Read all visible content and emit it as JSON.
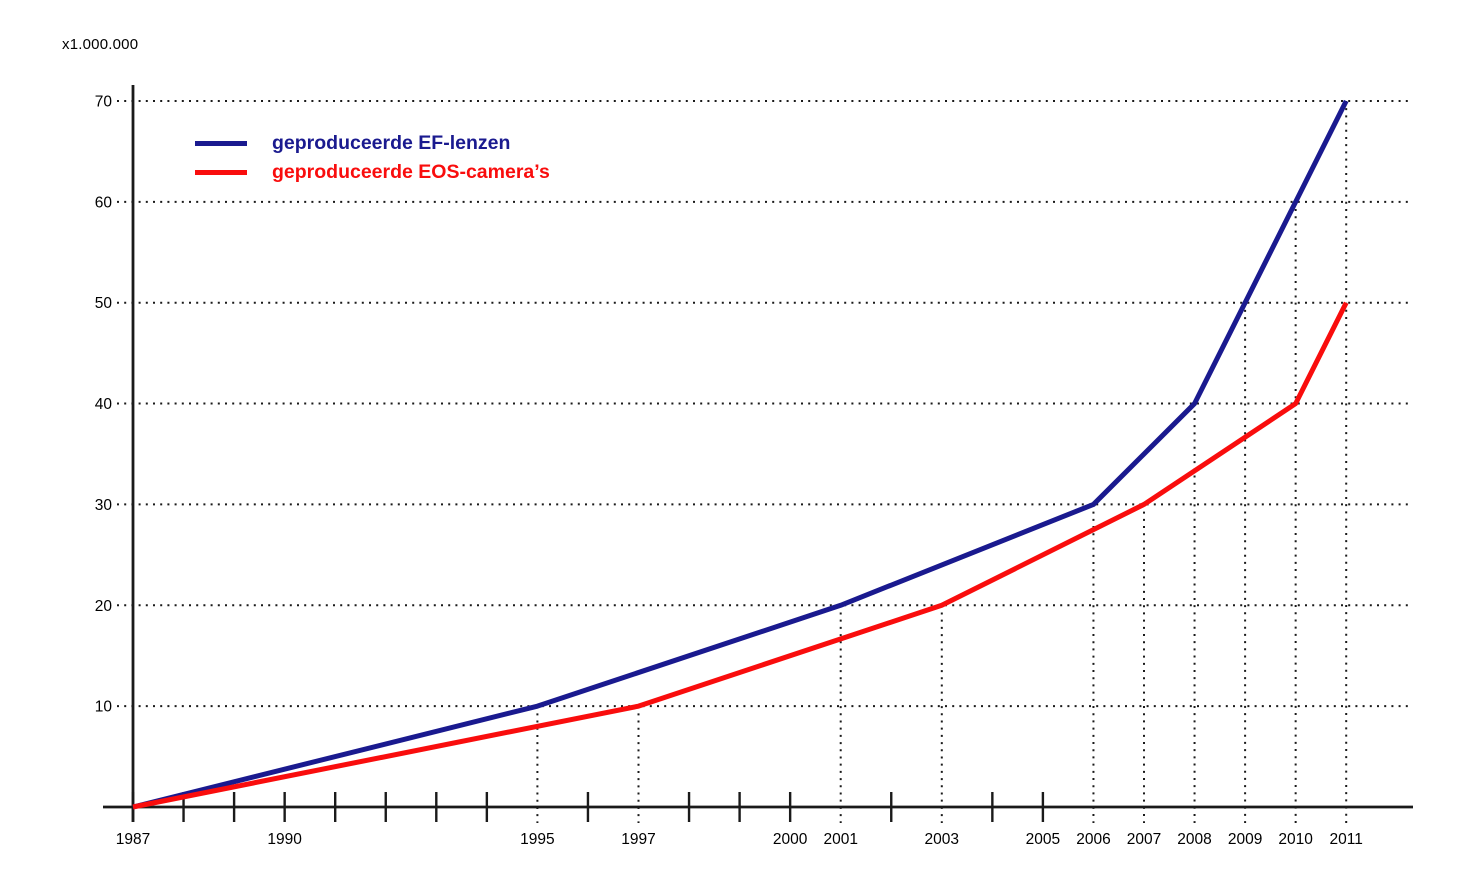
{
  "chart_data": {
    "type": "line",
    "title": "",
    "xlabel": "",
    "ylabel": "",
    "unit_label": "x1.000.000",
    "xlim": [
      1987,
      2011
    ],
    "ylim": [
      0,
      70
    ],
    "grid": "dotted",
    "legend_position": "top-left-inside",
    "y_ticks": [
      10,
      20,
      30,
      40,
      50,
      60,
      70
    ],
    "x_label_years": [
      1987,
      1990,
      1995,
      1997,
      2000,
      2001,
      2003,
      2005,
      2006,
      2007,
      2008,
      2009,
      2010,
      2011
    ],
    "x_solid_tick_years": [
      1987,
      1988,
      1989,
      1990,
      1991,
      1992,
      1993,
      1994,
      1996,
      1998,
      1999,
      2000,
      2002,
      2004,
      2005
    ],
    "dotted_guides": [
      {
        "year": 1995,
        "value": 10
      },
      {
        "year": 1997,
        "value": 10
      },
      {
        "year": 2001,
        "value": 20
      },
      {
        "year": 2003,
        "value": 20
      },
      {
        "year": 2006,
        "value": 30
      },
      {
        "year": 2007,
        "value": 30
      },
      {
        "year": 2008,
        "value": 40
      },
      {
        "year": 2009,
        "value": 50
      },
      {
        "year": 2010,
        "value": 60
      },
      {
        "year": 2011,
        "value": 70
      }
    ],
    "series": [
      {
        "name": "geproduceerde EF-lenzen",
        "color": "#1a1a8f",
        "points": [
          [
            1987,
            0
          ],
          [
            1995,
            10
          ],
          [
            2001,
            20
          ],
          [
            2006,
            30
          ],
          [
            2008,
            40
          ],
          [
            2011,
            70
          ]
        ]
      },
      {
        "name": "geproduceerde EOS-camera’s",
        "color": "#f90d0d",
        "points": [
          [
            1987,
            0
          ],
          [
            1997,
            10
          ],
          [
            2003,
            20
          ],
          [
            2007,
            30
          ],
          [
            2010,
            40
          ],
          [
            2011,
            50
          ]
        ]
      }
    ],
    "colors": {
      "axis": "#1a1a1a",
      "grid_dots": "#1a1a1a",
      "text": "#000000"
    }
  }
}
